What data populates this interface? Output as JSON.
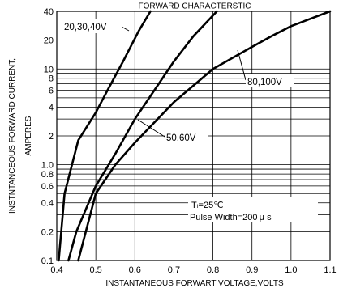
{
  "chart_data": {
    "type": "line",
    "title": "FORWARD CHARACTERSTIC",
    "xlabel": "INSTANTANEOUS FORWART VOLTAGE,VOLTS",
    "ylabel": "INSTNTANCEOUS FORWARD CURRENT,",
    "ylabel2": "AMPERES",
    "x_scale": "linear",
    "y_scale": "log",
    "xlim": [
      0.4,
      1.1
    ],
    "ylim": [
      0.1,
      40
    ],
    "grid": true,
    "x_ticks": [
      {
        "v": 0.4,
        "label": "0.4"
      },
      {
        "v": 0.5,
        "label": "0.5"
      },
      {
        "v": 0.6,
        "label": "0.6"
      },
      {
        "v": 0.7,
        "label": "0.7"
      },
      {
        "v": 0.8,
        "label": "0.8"
      },
      {
        "v": 0.9,
        "label": "0.9"
      },
      {
        "v": 1.0,
        "label": "1.0"
      },
      {
        "v": 1.1,
        "label": "1.1"
      }
    ],
    "y_ticks": [
      {
        "v": 40,
        "label": "40"
      },
      {
        "v": 20,
        "label": "20"
      },
      {
        "v": 10,
        "label": "10"
      },
      {
        "v": 8,
        "label": "8"
      },
      {
        "v": 6,
        "label": "6"
      },
      {
        "v": 4,
        "label": "4"
      },
      {
        "v": 2,
        "label": "2"
      },
      {
        "v": 1.0,
        "label": "1.0"
      },
      {
        "v": 0.8,
        "label": "0.8"
      },
      {
        "v": 0.6,
        "label": "0.6"
      },
      {
        "v": 0.4,
        "label": "0.4"
      },
      {
        "v": 0.2,
        "label": "0.2"
      },
      {
        "v": 0.1,
        "label": "0.1"
      }
    ],
    "minor_gridlines_y": [
      9,
      7,
      5,
      3,
      0.9,
      0.7,
      0.5,
      0.3
    ],
    "series": [
      {
        "name": "20,30,40V",
        "points": [
          [
            0.405,
            0.1
          ],
          [
            0.42,
            0.5
          ],
          [
            0.455,
            1.8
          ],
          [
            0.5,
            3.5
          ],
          [
            0.53,
            6
          ],
          [
            0.57,
            12
          ],
          [
            0.61,
            25
          ],
          [
            0.64,
            40
          ]
        ]
      },
      {
        "name": "50,60V",
        "points": [
          [
            0.43,
            0.1
          ],
          [
            0.45,
            0.2
          ],
          [
            0.5,
            0.6
          ],
          [
            0.55,
            1.3
          ],
          [
            0.6,
            3
          ],
          [
            0.65,
            6
          ],
          [
            0.7,
            12
          ],
          [
            0.75,
            22
          ],
          [
            0.81,
            40
          ]
        ]
      },
      {
        "name": "80,100V",
        "points": [
          [
            0.455,
            0.1
          ],
          [
            0.5,
            0.5
          ],
          [
            0.55,
            1.0
          ],
          [
            0.6,
            1.7
          ],
          [
            0.7,
            4.5
          ],
          [
            0.8,
            10
          ],
          [
            0.9,
            17
          ],
          [
            0.95,
            22
          ],
          [
            1.0,
            28
          ],
          [
            1.1,
            40
          ]
        ]
      }
    ],
    "annotations": [
      {
        "text": "20,30,40V",
        "series": "20,30,40V"
      },
      {
        "text": "50,60V",
        "series": "50,60V"
      },
      {
        "text": "80,100V",
        "series": "80,100V"
      },
      {
        "text": "Tₗ=25℃"
      },
      {
        "text": "Pulse Width=200 μ s"
      }
    ]
  }
}
